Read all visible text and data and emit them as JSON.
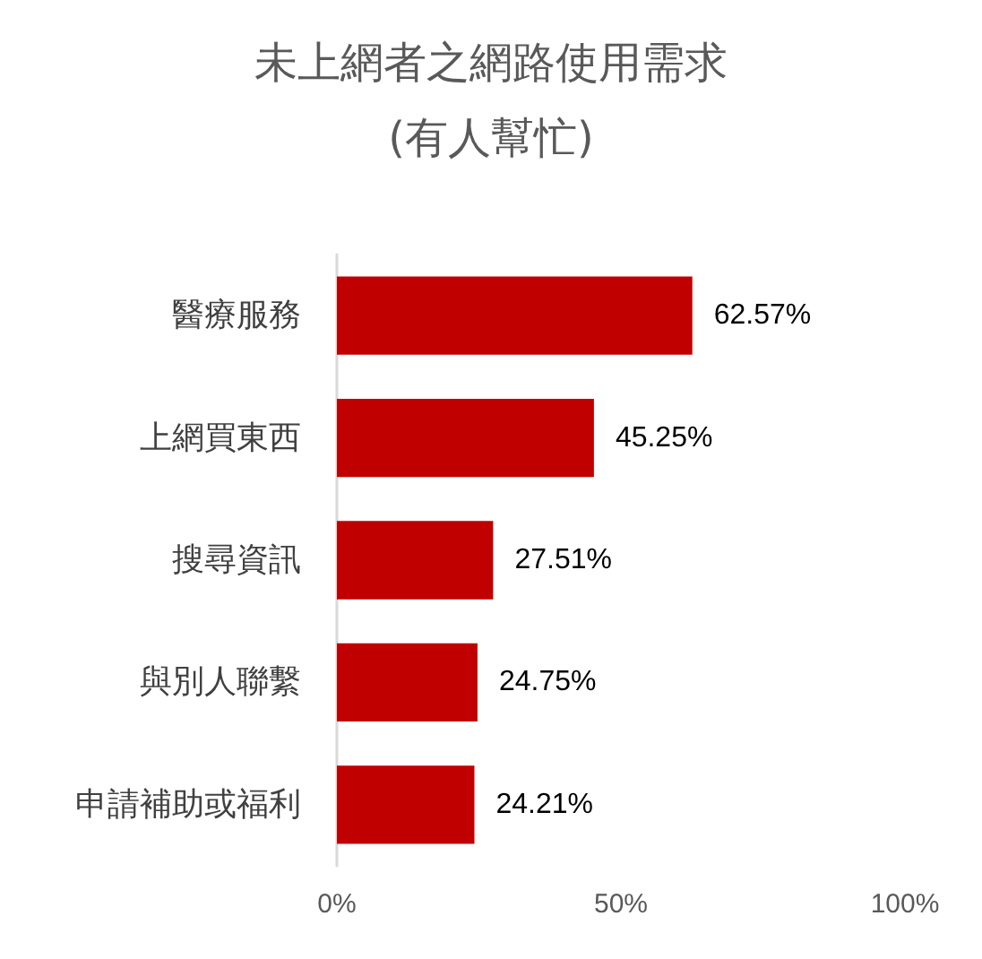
{
  "chart_data": {
    "type": "bar",
    "orientation": "horizontal",
    "title": "未上網者之網路使用需求",
    "subtitle": "(有人幫忙)",
    "categories": [
      "醫療服務",
      "上網買東西",
      "搜尋資訊",
      "與別人聯繫",
      "申請補助或福利"
    ],
    "values": [
      62.57,
      45.25,
      27.51,
      24.75,
      24.21
    ],
    "value_labels": [
      "62.57%",
      "45.25%",
      "27.51%",
      "24.75%",
      "24.21%"
    ],
    "color": "#c00000",
    "xlim": [
      0,
      100
    ],
    "xticks": [
      {
        "value": 0,
        "label": "0%"
      },
      {
        "value": 50,
        "label": "50%"
      },
      {
        "value": 100,
        "label": "100%"
      }
    ],
    "grid": false
  }
}
